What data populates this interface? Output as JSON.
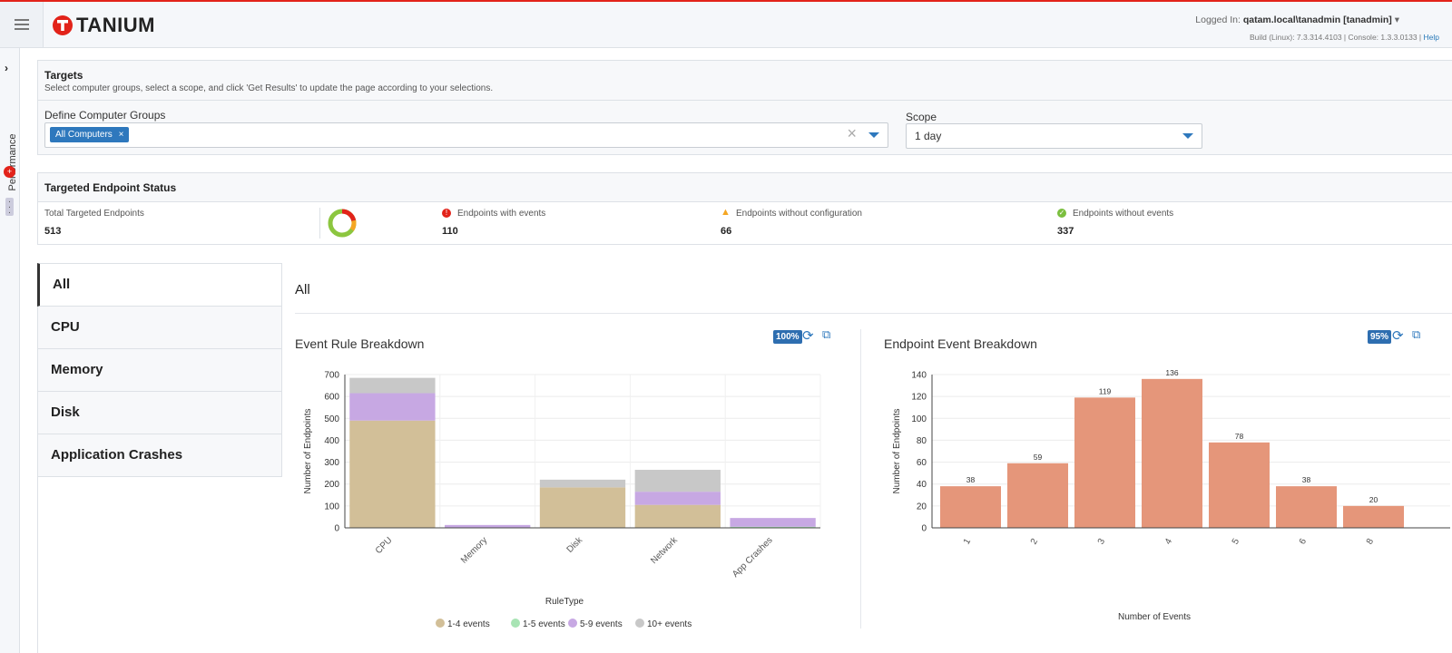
{
  "header": {
    "logo_text": "TANIUM",
    "logged_in_label": "Logged In:",
    "user": "qatam.local\\tanadmin [tanadmin]",
    "build_text": "Build (Linux): 7.3.314.4103 | Console: 1.3.3.0133 |",
    "help_label": "Help"
  },
  "siderail": {
    "label": "Performance"
  },
  "targets": {
    "title": "Targets",
    "description": "Select computer groups, select a scope, and click 'Get Results' to update the page according to your selections.",
    "groups_label": "Define Computer Groups",
    "group_chip": "All Computers",
    "scope_label": "Scope",
    "scope_value": "1 day"
  },
  "status": {
    "title": "Targeted Endpoint Status",
    "total_label": "Total Targeted Endpoints",
    "total_value": "513",
    "with_events_label": "Endpoints with events",
    "with_events_value": "110",
    "without_config_label": "Endpoints without configuration",
    "without_config_value": "66",
    "without_events_label": "Endpoints without events",
    "without_events_value": "337"
  },
  "tabs": [
    "All",
    "CPU",
    "Memory",
    "Disk",
    "Application Crashes"
  ],
  "content_title": "All",
  "colors": {
    "accent": "#2e78bd",
    "brand_red": "#e2231a",
    "bar_orange": "#e5967a"
  },
  "chart_data": [
    {
      "type": "bar",
      "stacked": true,
      "title": "Event Rule Breakdown",
      "zoom": "100%",
      "categories": [
        "CPU",
        "Memory",
        "Disk",
        "Network",
        "App Crashes"
      ],
      "series": [
        {
          "name": "1-4 events",
          "color": "#d2bf98",
          "values": [
            490,
            0,
            185,
            105,
            0
          ]
        },
        {
          "name": "1-5 events",
          "color": "#a8e4b4",
          "values": [
            0,
            0,
            0,
            0,
            5
          ]
        },
        {
          "name": "5-9 events",
          "color": "#c7a8e3",
          "values": [
            125,
            13,
            0,
            60,
            40
          ]
        },
        {
          "name": "10+ events",
          "color": "#c8c8c8",
          "values": [
            70,
            0,
            35,
            100,
            0
          ]
        }
      ],
      "xlabel": "RuleType",
      "ylabel": "Number of Endpoints",
      "ylim": [
        0,
        700
      ],
      "yticks": [
        0,
        100,
        200,
        300,
        400,
        500,
        600,
        700
      ]
    },
    {
      "type": "bar",
      "title": "Endpoint Event Breakdown",
      "zoom": "95%",
      "categories": [
        "1",
        "2",
        "3",
        "4",
        "5",
        "6",
        "8"
      ],
      "values": [
        38,
        59,
        119,
        136,
        78,
        38,
        20
      ],
      "xlabel": "Number of Events",
      "ylabel": "Number of Endpoints",
      "ylim": [
        0,
        140
      ],
      "yticks": [
        0,
        20,
        40,
        60,
        80,
        100,
        120,
        140
      ]
    }
  ]
}
